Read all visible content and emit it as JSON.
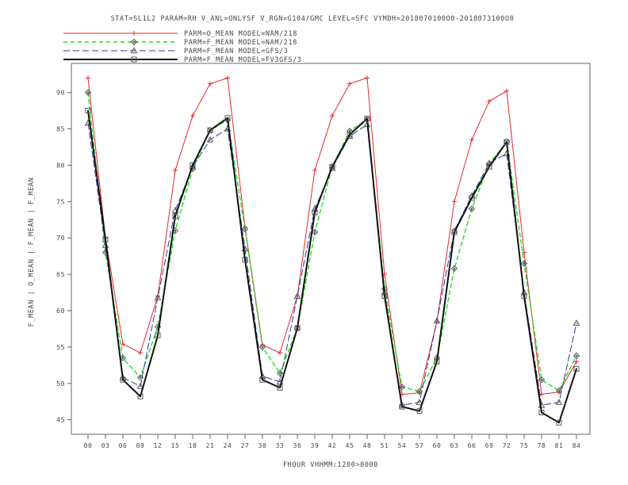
{
  "chart_data": {
    "type": "line",
    "title": "STAT=SL1L2 PARAM=RH V_ANL=ONLYSF V_RGN=G104/GMC LEVEL=SFC VYMDH=2018070100O0-2018073100O0",
    "xlabel": "FHOUR VHHMM:1200>0000",
    "ylabel": "F_MEAN | O_MEAN | F_MEAN | F_MEAN",
    "ylim": [
      43,
      94
    ],
    "yticks": [
      45,
      50,
      55,
      60,
      65,
      70,
      75,
      80,
      85,
      90
    ],
    "categories": [
      "00",
      "03",
      "06",
      "09",
      "12",
      "15",
      "18",
      "21",
      "24",
      "27",
      "30",
      "33",
      "36",
      "39",
      "42",
      "45",
      "48",
      "51",
      "54",
      "57",
      "60",
      "63",
      "66",
      "69",
      "72",
      "75",
      "78",
      "81",
      "84"
    ],
    "series": [
      {
        "name": "PARM=O_MEAN MODEL=NAM/218",
        "color": "#e8262d",
        "dash": "",
        "marker": "plus",
        "width": 1,
        "values": [
          92.0,
          70.0,
          55.4,
          54.2,
          62.0,
          79.3,
          86.8,
          91.2,
          92.0,
          71.5,
          55.3,
          54.2,
          62.0,
          79.3,
          86.8,
          91.2,
          92.0,
          65.0,
          48.5,
          48.7,
          58.5,
          75.0,
          83.5,
          88.8,
          90.2,
          68.0,
          48.5,
          48.8,
          53.0
        ]
      },
      {
        "name": "PARM=F_MEAN MODEL=NAM/218",
        "color": "#22dd22",
        "dash": "5,4",
        "marker": "diamond",
        "width": 1.4,
        "values": [
          90.0,
          68.0,
          53.5,
          50.8,
          57.8,
          71.0,
          79.5,
          84.8,
          86.2,
          71.2,
          55.0,
          51.4,
          57.6,
          70.8,
          79.8,
          84.7,
          86.3,
          63.0,
          49.5,
          48.9,
          53.5,
          65.8,
          74.0,
          80.2,
          83.2,
          66.5,
          50.5,
          49.0,
          53.8
        ]
      },
      {
        "name": "PARM=F_MEAN MODEL=GFS/3",
        "color": "#2b3b9e",
        "dash": "8,4",
        "marker": "triangle",
        "width": 1,
        "values": [
          85.8,
          69.0,
          50.8,
          49.6,
          61.8,
          73.8,
          79.8,
          83.5,
          85.0,
          68.5,
          51.0,
          50.2,
          62.0,
          74.0,
          79.6,
          84.0,
          85.6,
          62.5,
          47.0,
          47.4,
          58.6,
          71.0,
          75.8,
          80.3,
          81.6,
          62.5,
          47.0,
          47.4,
          58.3
        ]
      },
      {
        "name": "PARM=F_MEAN MODEL=FV3GFS/3",
        "color": "#111111",
        "dash": "",
        "marker": "square",
        "width": 2,
        "values": [
          87.5,
          69.8,
          50.5,
          48.2,
          56.6,
          73.0,
          80.0,
          84.8,
          86.5,
          67.0,
          50.5,
          49.4,
          57.6,
          73.5,
          79.8,
          84.2,
          86.4,
          62.0,
          46.8,
          46.2,
          53.0,
          70.8,
          75.5,
          79.8,
          83.2,
          62.0,
          46.0,
          44.6,
          52.0
        ]
      }
    ]
  }
}
